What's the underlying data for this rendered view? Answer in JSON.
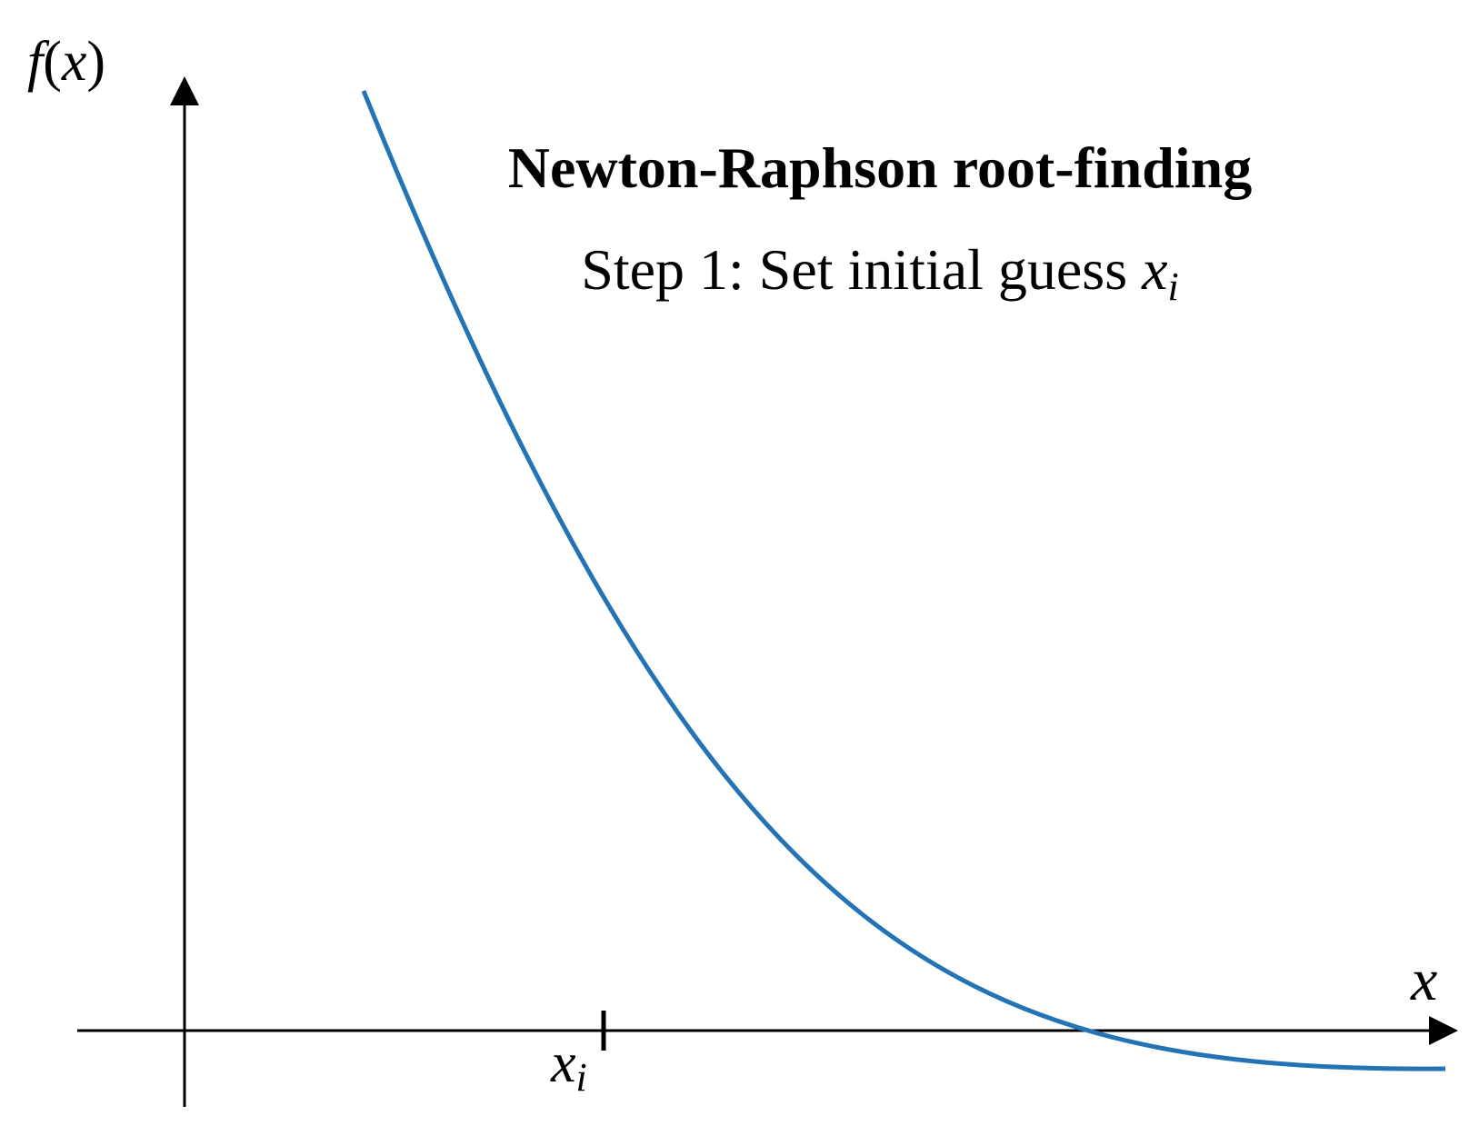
{
  "title": "Newton-Raphson root-finding",
  "subtitle": {
    "text": "Step 1: Set initial guess ",
    "var": "x",
    "sub": "i"
  },
  "axes": {
    "y_label": {
      "func": "f",
      "open": "(",
      "var": "x",
      "close": ")"
    },
    "x_label": "x"
  },
  "tick": {
    "var": "x",
    "sub": "i"
  },
  "colors": {
    "curve": "#2474b5",
    "axis": "#000000",
    "text": "#000000"
  }
}
